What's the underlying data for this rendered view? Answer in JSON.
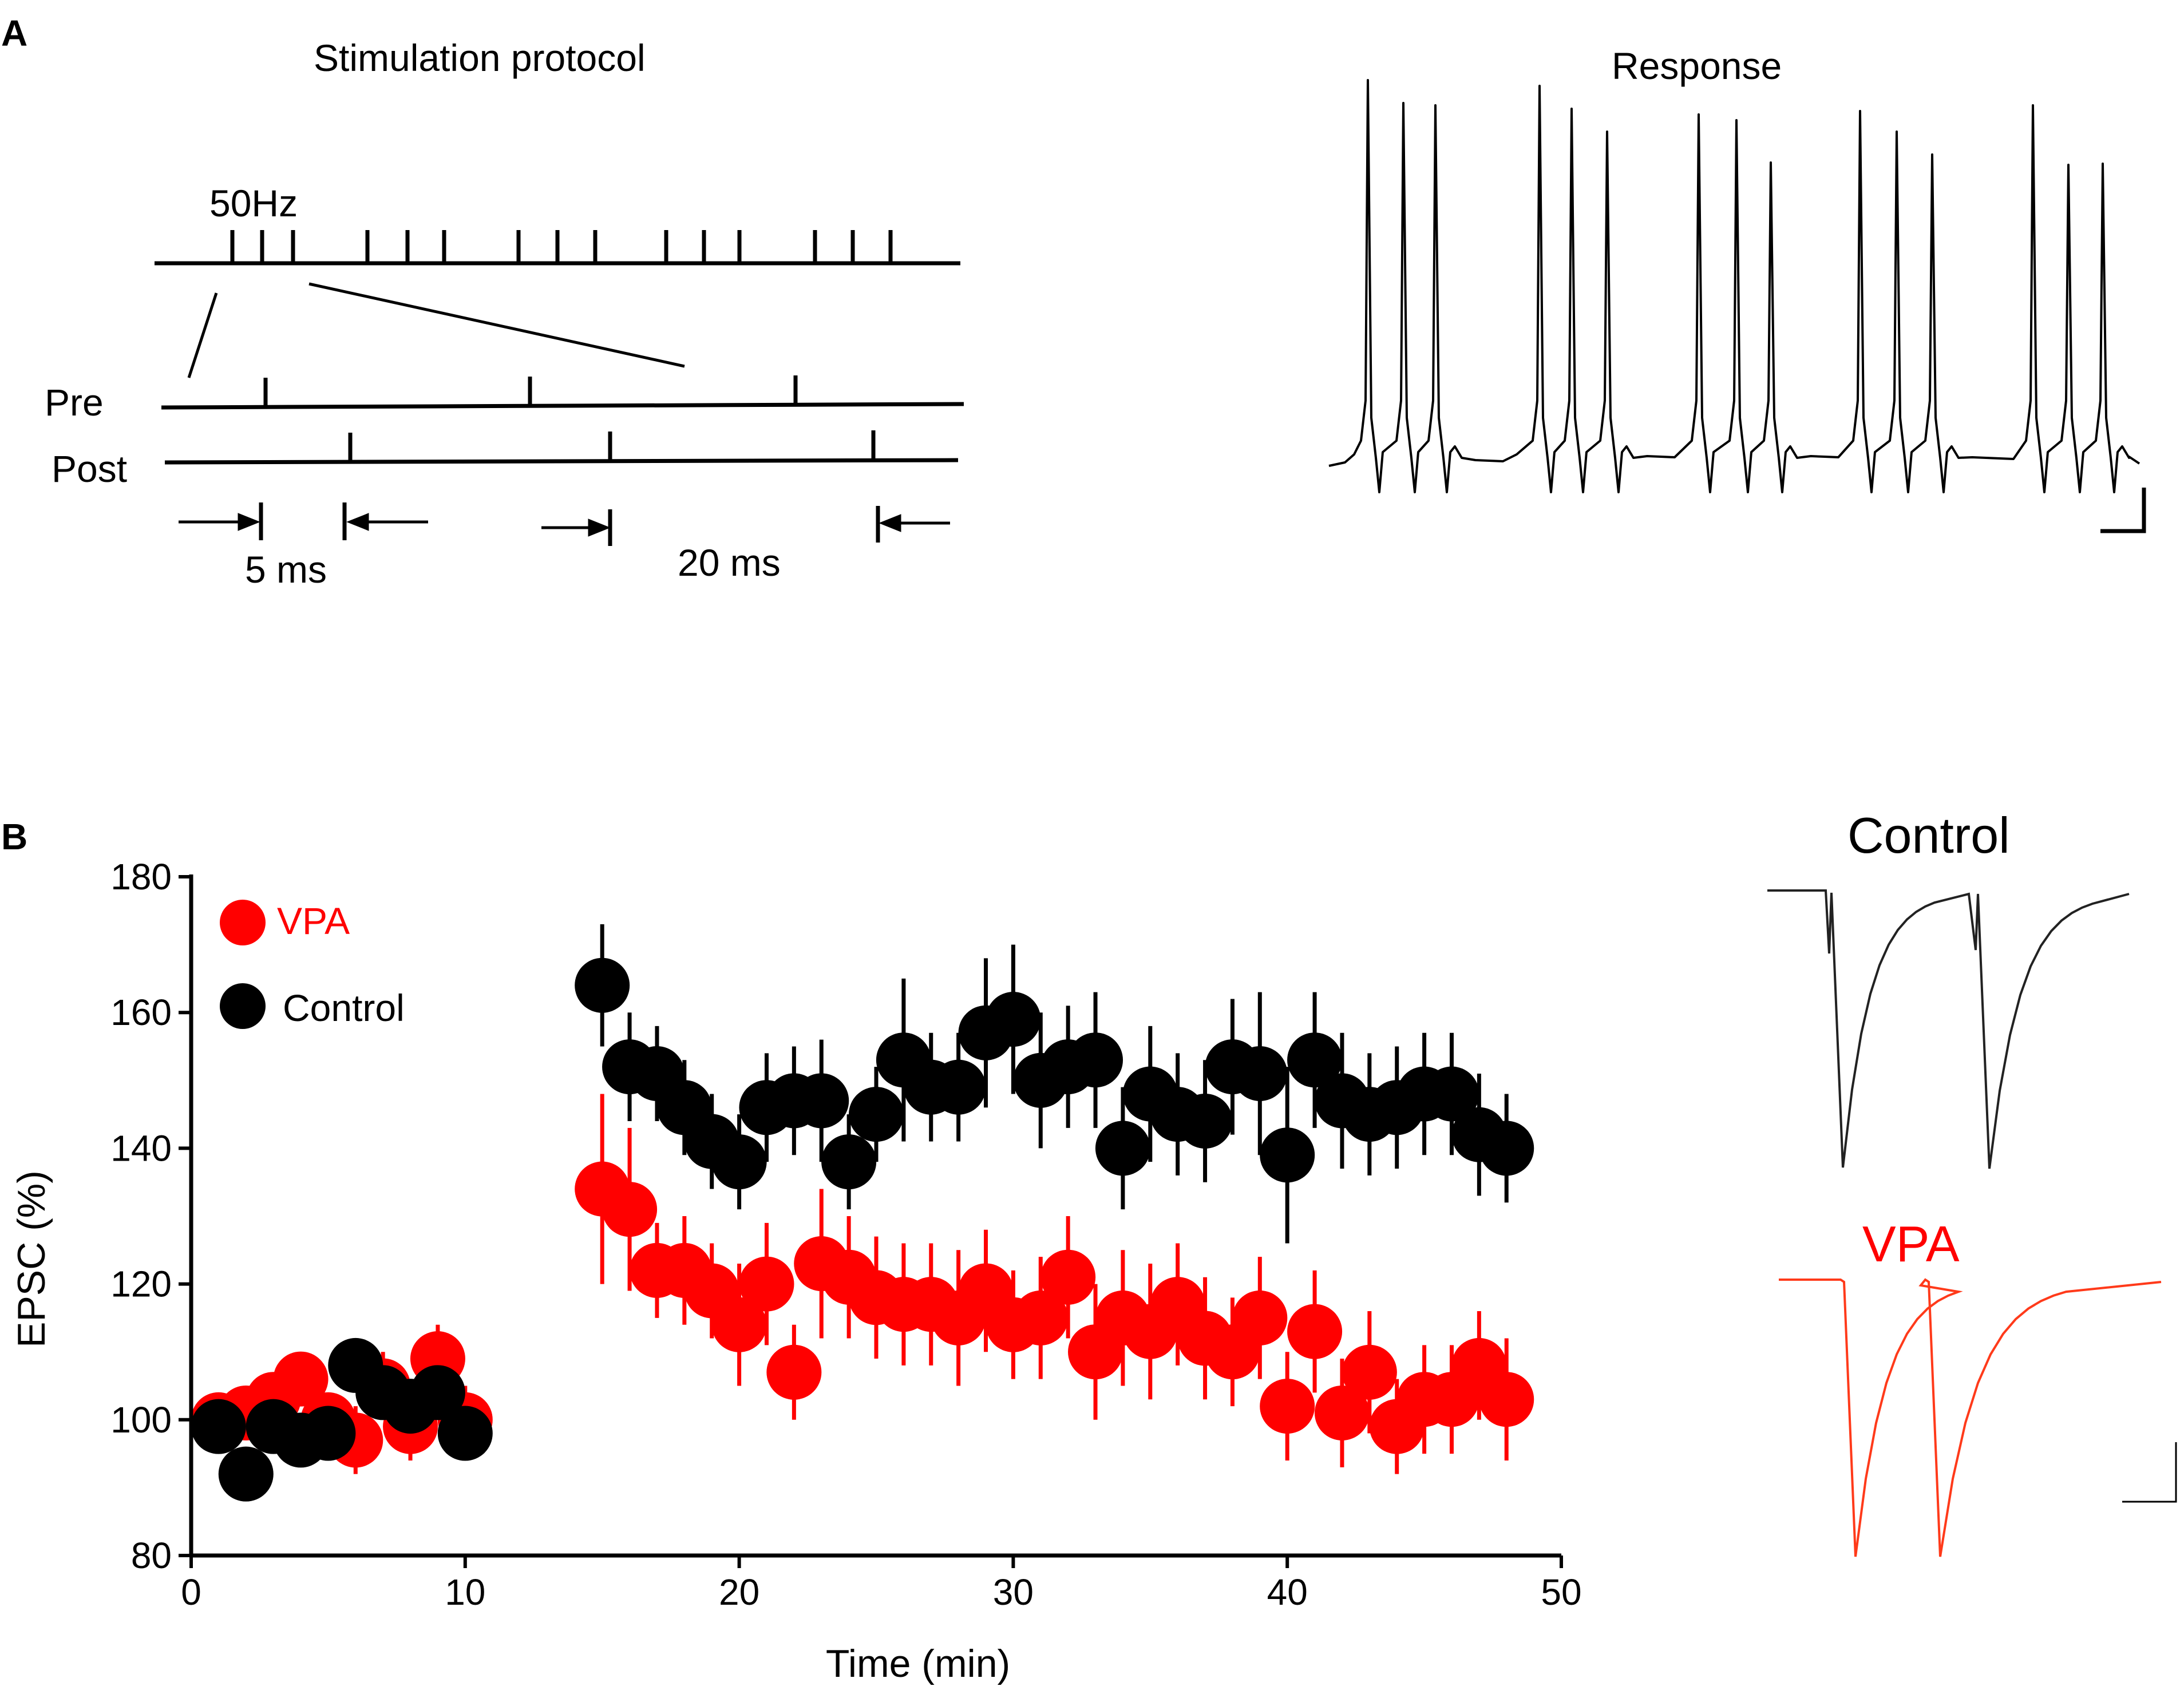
{
  "panel_a": {
    "letter": "A",
    "protocol_title": "Stimulation protocol",
    "freq_label": "50Hz",
    "pre_label": "Pre",
    "post_label": "Post",
    "interval_short": "5 ms",
    "interval_long": "20 ms",
    "response_title": "Response"
  },
  "panel_b": {
    "letter": "B",
    "inset_control_label": "Control",
    "inset_vpa_label": "VPA"
  },
  "colors": {
    "vpa": "#ff0000",
    "control": "#000000",
    "inset_vpa": "#ff3a1a",
    "inset_control": "#222222"
  },
  "chart_data": {
    "type": "scatter",
    "title": "",
    "xlabel": "Time (min)",
    "ylabel": "EPSC (%)",
    "xlim": [
      0,
      50
    ],
    "ylim": [
      80,
      180
    ],
    "xticks": [
      0,
      10,
      20,
      30,
      40,
      50
    ],
    "yticks": [
      80,
      100,
      120,
      140,
      160,
      180
    ],
    "legend_position": "top-left",
    "series": [
      {
        "name": "VPA",
        "color": "#ff0000",
        "x": [
          1,
          2,
          3,
          4,
          5,
          6,
          7,
          8,
          9,
          10,
          15,
          16,
          17,
          18,
          19,
          20,
          21,
          22,
          23,
          24,
          25,
          26,
          27,
          28,
          29,
          30,
          31,
          32,
          33,
          34,
          35,
          36,
          37,
          38,
          39,
          40,
          41,
          42,
          43,
          44,
          45,
          46,
          47,
          48
        ],
        "y": [
          100,
          101,
          103,
          106,
          100,
          97,
          105,
          99,
          109,
          100,
          134,
          131,
          122,
          122,
          119,
          114,
          120,
          107,
          123,
          121,
          118,
          117,
          117,
          115,
          119,
          114,
          115,
          121,
          110,
          115,
          113,
          117,
          112,
          110,
          115,
          102,
          113,
          101,
          107,
          99,
          103,
          103,
          108,
          103
        ],
        "err": [
          4,
          4,
          4,
          4,
          4,
          5,
          5,
          5,
          5,
          5,
          14,
          12,
          7,
          8,
          7,
          9,
          9,
          7,
          11,
          9,
          9,
          9,
          9,
          10,
          9,
          8,
          9,
          9,
          10,
          10,
          10,
          9,
          9,
          8,
          9,
          8,
          9,
          8,
          9,
          7,
          8,
          8,
          8,
          9
        ]
      },
      {
        "name": "Control",
        "color": "#000000",
        "x": [
          1,
          2,
          3,
          4,
          5,
          6,
          7,
          8,
          9,
          10,
          15,
          16,
          17,
          18,
          19,
          20,
          21,
          22,
          23,
          24,
          25,
          26,
          27,
          28,
          29,
          30,
          31,
          32,
          33,
          34,
          35,
          36,
          37,
          38,
          39,
          40,
          41,
          42,
          43,
          44,
          45,
          46,
          47,
          48
        ],
        "y": [
          99,
          92,
          99,
          97,
          98,
          108,
          104,
          102,
          104,
          98,
          164,
          152,
          151,
          146,
          141,
          138,
          146,
          147,
          147,
          138,
          145,
          153,
          149,
          149,
          157,
          159,
          150,
          152,
          153,
          140,
          148,
          145,
          144,
          152,
          151,
          139,
          153,
          147,
          145,
          146,
          148,
          148,
          142,
          140
        ],
        "err": [
          3,
          3,
          3,
          3,
          3,
          4,
          4,
          4,
          4,
          4,
          9,
          8,
          7,
          7,
          7,
          7,
          8,
          8,
          9,
          7,
          7,
          12,
          8,
          8,
          11,
          11,
          10,
          9,
          10,
          9,
          10,
          9,
          9,
          10,
          12,
          13,
          10,
          10,
          9,
          9,
          9,
          9,
          9,
          8
        ]
      }
    ]
  }
}
